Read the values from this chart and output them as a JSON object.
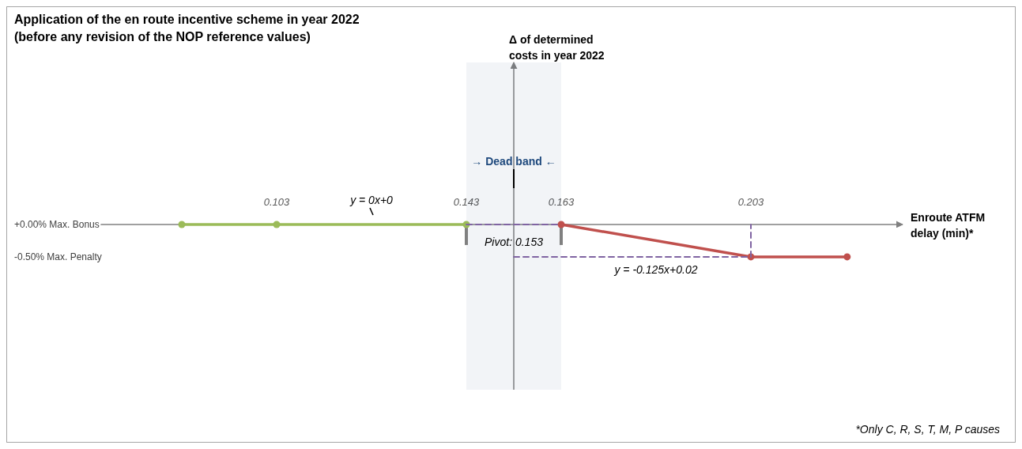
{
  "chart_data": {
    "type": "line",
    "title": "Application of the en route incentive scheme in year 2022",
    "subtitle": "(before any revision of the NOP reference values)",
    "xlabel": "Enroute ATFM delay (min)*",
    "ylabel": "Δ of determined costs in year 2022",
    "xlim": [
      0.06,
      0.235
    ],
    "xticks": [
      0.103,
      0.143,
      0.163,
      0.203
    ],
    "ylim": [
      -2.55,
      2.5
    ],
    "yticks": [
      {
        "value": 0,
        "label": "+0.00% Max. Bonus"
      },
      {
        "value": -0.5,
        "label": "-0.50% Max. Penalty"
      }
    ],
    "series": [
      {
        "color": "#9bbb59",
        "x": [
          0.083,
          0.103,
          0.143
        ],
        "values": [
          0,
          0,
          0
        ],
        "marker": "circle",
        "line_style": "solid"
      },
      {
        "color": "#c0504d",
        "x": [
          0.163,
          0.203,
          0.2233
        ],
        "values": [
          0,
          -0.5,
          -0.5
        ],
        "marker": "circle",
        "line_style": "solid"
      },
      {
        "color": "#8064a2",
        "x": [
          0.143,
          0.163
        ],
        "values": [
          0,
          0
        ],
        "marker": "none",
        "line_style": "dashed"
      },
      {
        "color": "#8064a2",
        "x": [
          0.153,
          0.203,
          0.203
        ],
        "values": [
          -0.5,
          -0.5,
          0
        ],
        "marker": "none",
        "line_style": "dashed"
      }
    ],
    "ref_lines": [
      {
        "axis": "x",
        "value": 0.153,
        "color": "#808080",
        "line_style": "solid"
      }
    ],
    "bands": [
      {
        "axis": "x",
        "from": 0.143,
        "to": 0.163,
        "label": "→ Dead band ←",
        "color": "#1f497d"
      }
    ],
    "annotations": [
      {
        "text": "Pivot: 0.153",
        "x": 0.153,
        "y": 0
      },
      {
        "text": "y = 0x+0",
        "x": 0.123,
        "y": 0
      },
      {
        "text": "y = -0.125x+0.02",
        "x": 0.183,
        "y": -0.25
      },
      "*Only C, R, S, T, M, P causes"
    ]
  }
}
